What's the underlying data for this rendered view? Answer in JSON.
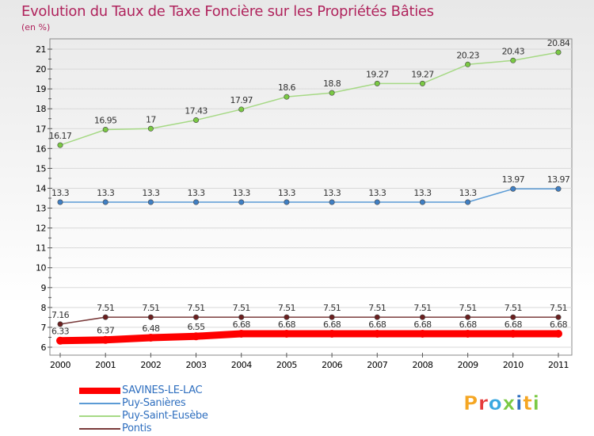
{
  "header": {
    "title": "Evolution du Taux de Taxe Foncière sur les Propriétés Bâties",
    "subtitle": "(en %)"
  },
  "logo_text": "Proxiti",
  "logo_colors": [
    "#f5a623",
    "#e53b3b",
    "#3aa8e0",
    "#7ac943",
    "#2f6fbf",
    "#f5a623",
    "#7ac943"
  ],
  "colors": {
    "frame": "#8a8a8a",
    "grid": "#d9d9d9",
    "axis_text": "#000000",
    "label_text": "#333333"
  },
  "chart_data": {
    "type": "line",
    "x": [
      "2000",
      "2001",
      "2002",
      "2003",
      "2004",
      "2005",
      "2006",
      "2007",
      "2008",
      "2009",
      "2010",
      "2011"
    ],
    "ylim": [
      6,
      21
    ],
    "yticks": [
      "6",
      "7",
      "8",
      "9",
      "10",
      "11",
      "12",
      "13",
      "14",
      "15",
      "16",
      "17",
      "18",
      "19",
      "20",
      "21"
    ],
    "grid": true,
    "legend_position": "bottom-left",
    "series": [
      {
        "name": "SAVINES-LE-LAC",
        "color": "#ff0000",
        "marker": "#ff0000",
        "width": 9,
        "values": [
          6.33,
          6.37,
          6.48,
          6.55,
          6.68,
          6.68,
          6.68,
          6.68,
          6.68,
          6.68,
          6.68,
          6.68
        ],
        "labels": [
          "6.33",
          "6.37",
          "6.48",
          "6.55",
          "6.68",
          "6.68",
          "6.68",
          "6.68",
          "6.68",
          "6.68",
          "6.68",
          "6.68"
        ]
      },
      {
        "name": "Puy-Sanières",
        "color": "#5b9bd5",
        "marker": "#3f7fc4",
        "width": 1.5,
        "values": [
          13.3,
          13.3,
          13.3,
          13.3,
          13.3,
          13.3,
          13.3,
          13.3,
          13.3,
          13.3,
          13.97,
          13.97
        ],
        "labels": [
          "13.3",
          "13.3",
          "13.3",
          "13.3",
          "13.3",
          "13.3",
          "13.3",
          "13.3",
          "13.3",
          "13.3",
          "13.97",
          "13.97"
        ]
      },
      {
        "name": "Puy-Saint-Eusèbe",
        "color": "#a6d985",
        "marker": "#7ac943",
        "width": 1.5,
        "values": [
          16.17,
          16.95,
          17,
          17.43,
          17.97,
          18.6,
          18.8,
          19.27,
          19.27,
          20.23,
          20.43,
          20.84
        ],
        "labels": [
          "16.17",
          "16.95",
          "17",
          "17.43",
          "17.97",
          "18.6",
          "18.8",
          "19.27",
          "19.27",
          "20.23",
          "20.43",
          "20.84"
        ]
      },
      {
        "name": "Pontis",
        "color": "#7a3b3b",
        "marker": "#6b1f1f",
        "width": 1.5,
        "values": [
          7.16,
          7.51,
          7.51,
          7.51,
          7.51,
          7.51,
          7.51,
          7.51,
          7.51,
          7.51,
          7.51,
          7.51
        ],
        "labels": [
          "7.16",
          "7.51",
          "7.51",
          "7.51",
          "7.51",
          "7.51",
          "7.51",
          "7.51",
          "7.51",
          "7.51",
          "7.51",
          "7.51"
        ]
      }
    ]
  }
}
